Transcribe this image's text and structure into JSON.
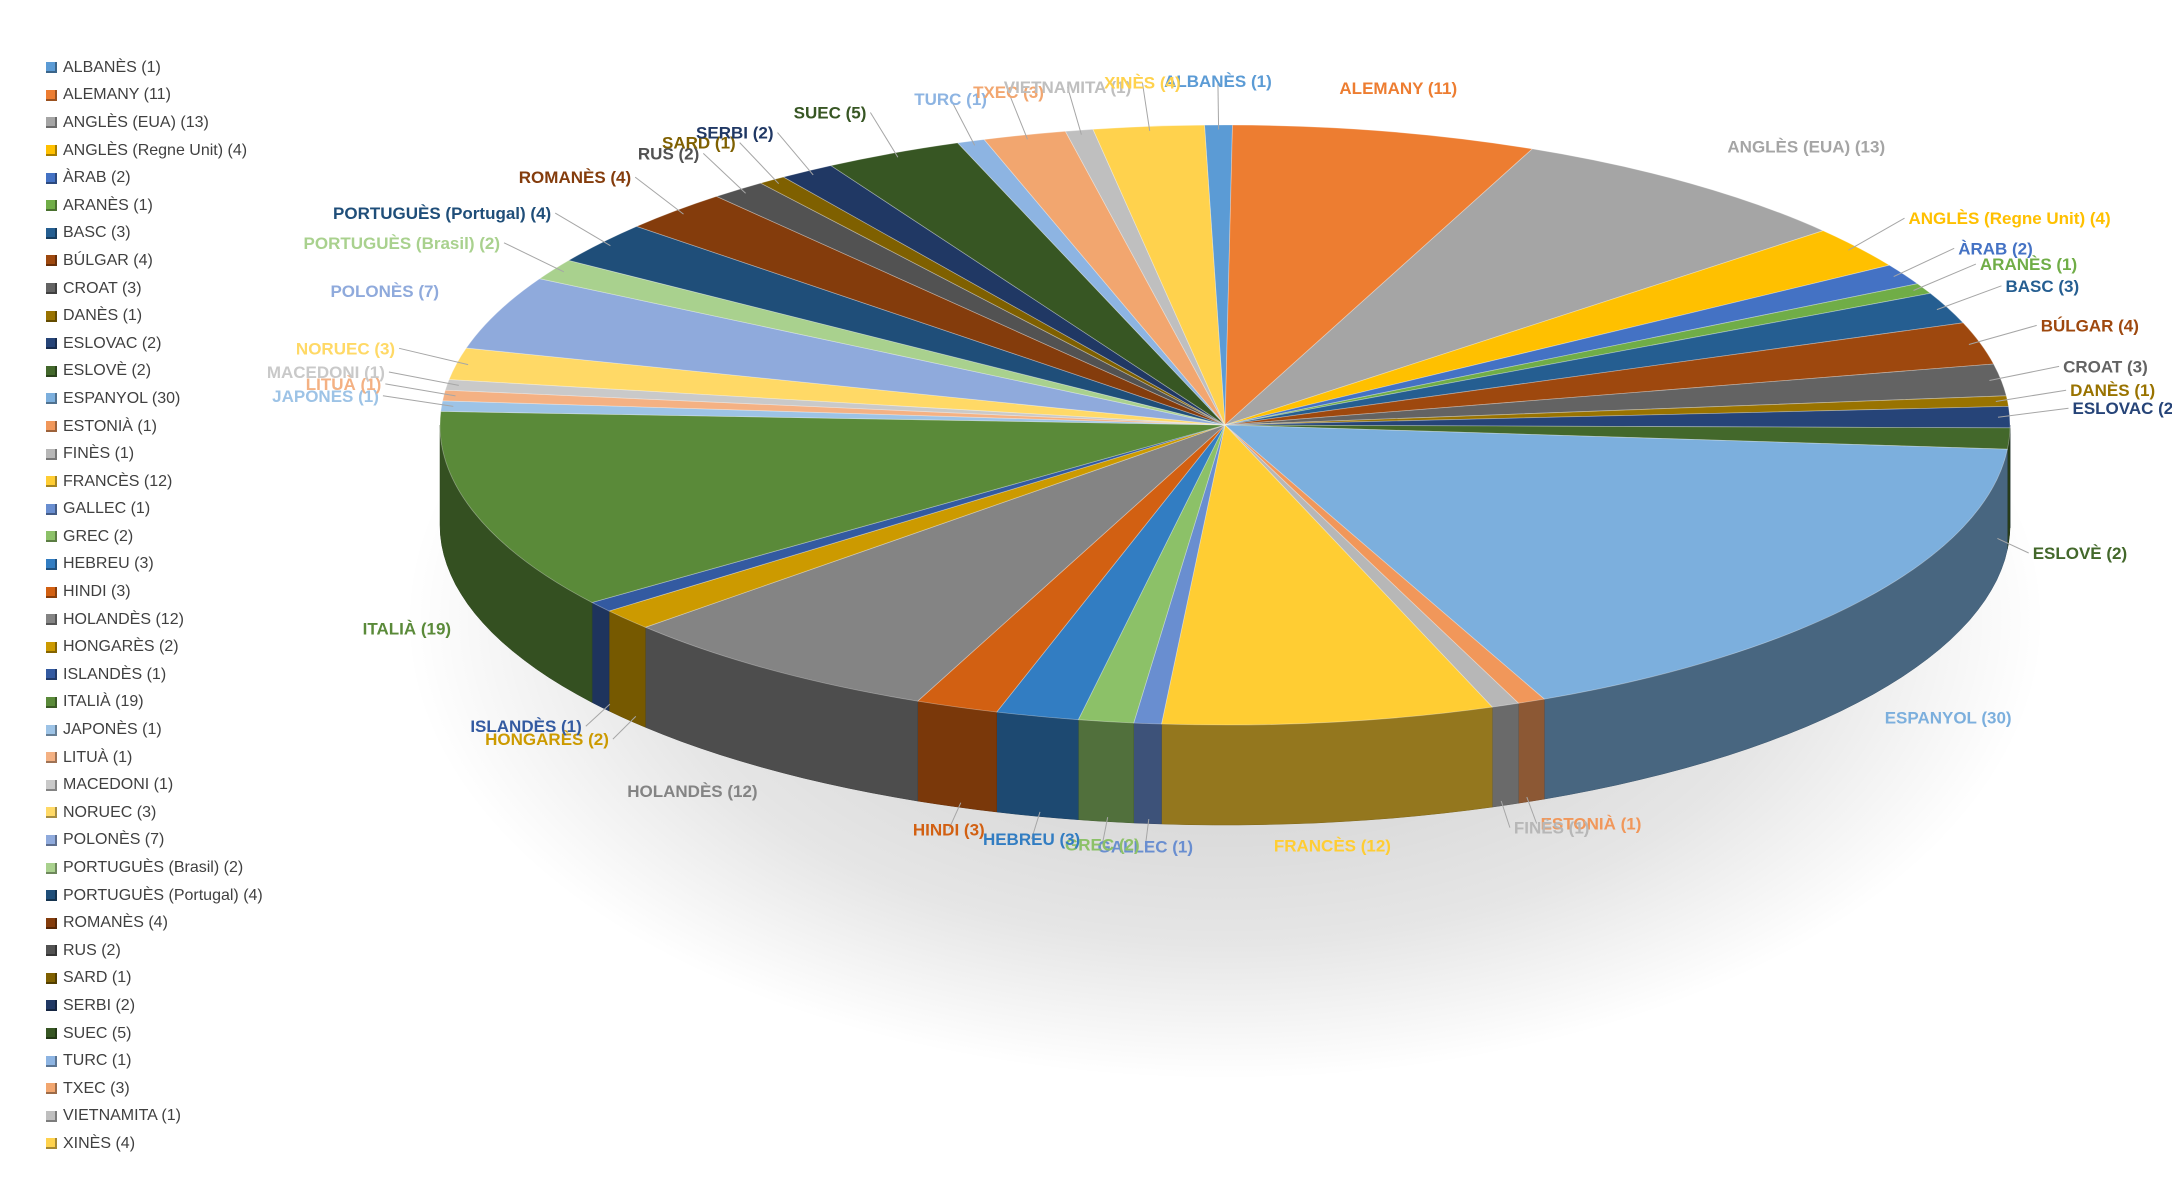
{
  "chart_data": {
    "type": "pie",
    "title": "",
    "legend_position": "left",
    "slices": [
      {
        "label": "ALBANÈS (1)",
        "value": 1,
        "color": "#5B9BD5"
      },
      {
        "label": "ALEMANY (11)",
        "value": 11,
        "color": "#ED7D31"
      },
      {
        "label": "ANGLÈS (EUA) (13)",
        "value": 13,
        "color": "#A5A5A5"
      },
      {
        "label": "ANGLÈS (Regne Unit) (4)",
        "value": 4,
        "color": "#FFC000"
      },
      {
        "label": "ÀRAB (2)",
        "value": 2,
        "color": "#4472C4"
      },
      {
        "label": "ARANÈS (1)",
        "value": 1,
        "color": "#70AD47"
      },
      {
        "label": "BASC (3)",
        "value": 3,
        "color": "#255E91"
      },
      {
        "label": "BÚLGAR (4)",
        "value": 4,
        "color": "#9E480E"
      },
      {
        "label": "CROAT (3)",
        "value": 3,
        "color": "#636363"
      },
      {
        "label": "DANÈS (1)",
        "value": 1,
        "color": "#997300"
      },
      {
        "label": "ESLOVAC (2)",
        "value": 2,
        "color": "#264478"
      },
      {
        "label": "ESLOVÈ (2)",
        "value": 2,
        "color": "#43682B"
      },
      {
        "label": "ESPANYOL (30)",
        "value": 30,
        "color": "#7CAFDD"
      },
      {
        "label": "ESTONIÀ (1)",
        "value": 1,
        "color": "#F1975A"
      },
      {
        "label": "FINÈS (1)",
        "value": 1,
        "color": "#B7B7B7"
      },
      {
        "label": "FRANCÈS (12)",
        "value": 12,
        "color": "#FFCD33"
      },
      {
        "label": "GALLEC (1)",
        "value": 1,
        "color": "#698ED0"
      },
      {
        "label": "GREC (2)",
        "value": 2,
        "color": "#8CC168"
      },
      {
        "label": "HEBREU (3)",
        "value": 3,
        "color": "#327DC2"
      },
      {
        "label": "HINDI (3)",
        "value": 3,
        "color": "#D26012"
      },
      {
        "label": "HOLANDÈS (12)",
        "value": 12,
        "color": "#848484"
      },
      {
        "label": "HONGARÈS (2)",
        "value": 2,
        "color": "#CC9A00"
      },
      {
        "label": "ISLANDÈS (1)",
        "value": 1,
        "color": "#335AA1"
      },
      {
        "label": "ITALIÀ (19)",
        "value": 19,
        "color": "#5A8A39"
      },
      {
        "label": "JAPONÈS (1)",
        "value": 1,
        "color": "#9DC3E6"
      },
      {
        "label": "LITUÀ (1)",
        "value": 1,
        "color": "#F4B183"
      },
      {
        "label": "MACEDONI (1)",
        "value": 1,
        "color": "#C9C9C9"
      },
      {
        "label": "NORUEC (3)",
        "value": 3,
        "color": "#FFD966"
      },
      {
        "label": "POLONÈS (7)",
        "value": 7,
        "color": "#8FAADC"
      },
      {
        "label": "PORTUGUÈS (Brasil) (2)",
        "value": 2,
        "color": "#A9D18E"
      },
      {
        "label": "PORTUGUÈS (Portugal) (4)",
        "value": 4,
        "color": "#1F4E79"
      },
      {
        "label": "ROMANÈS (4)",
        "value": 4,
        "color": "#843C0C"
      },
      {
        "label": "RUS (2)",
        "value": 2,
        "color": "#525252"
      },
      {
        "label": "SARD (1)",
        "value": 1,
        "color": "#7F6000"
      },
      {
        "label": "SERBI (2)",
        "value": 2,
        "color": "#203864"
      },
      {
        "label": "SUEC (5)",
        "value": 5,
        "color": "#375623"
      },
      {
        "label": "TURC (1)",
        "value": 1,
        "color": "#8DB4E2"
      },
      {
        "label": "TXEC (3)",
        "value": 3,
        "color": "#F2A66F"
      },
      {
        "label": "VIETNAMITA (1)",
        "value": 1,
        "color": "#BFBFBF"
      },
      {
        "label": "XINÈS (4)",
        "value": 4,
        "color": "#FFD24D"
      }
    ]
  }
}
